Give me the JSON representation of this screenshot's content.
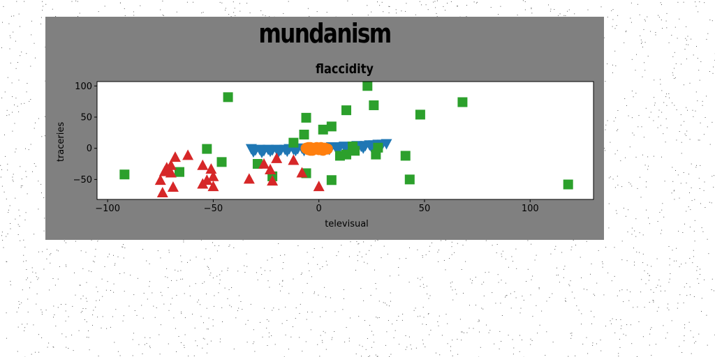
{
  "figure": {
    "background": "#808080"
  },
  "suptitle": "mundanism",
  "chart_data": {
    "type": "scatter",
    "title": "flaccidity",
    "xlabel": "televisual",
    "ylabel": "traceries",
    "xlim": [
      -105,
      130
    ],
    "ylim": [
      -82,
      107
    ],
    "xticks": [
      -100,
      -50,
      0,
      50,
      100
    ],
    "yticks": [
      -50,
      0,
      50,
      100
    ],
    "grid": false,
    "series": [
      {
        "marker": "triangle-down",
        "color": "#1f77b4",
        "points": [
          [
            -32,
            0
          ],
          [
            -30,
            -2
          ],
          [
            -28,
            -1
          ],
          [
            -26,
            -3
          ],
          [
            -24,
            -1
          ],
          [
            -22,
            -2
          ],
          [
            -20,
            -1
          ],
          [
            -18,
            -2
          ],
          [
            -16,
            -1
          ],
          [
            -14,
            0
          ],
          [
            -12,
            -1
          ],
          [
            -10,
            0
          ],
          [
            -8,
            1
          ],
          [
            -6,
            0
          ],
          [
            -4,
            1
          ],
          [
            -2,
            1
          ],
          [
            0,
            2
          ],
          [
            2,
            1
          ],
          [
            4,
            2
          ],
          [
            6,
            3
          ],
          [
            8,
            2
          ],
          [
            10,
            3
          ],
          [
            12,
            4
          ],
          [
            14,
            3
          ],
          [
            16,
            4
          ],
          [
            18,
            5
          ],
          [
            20,
            4
          ],
          [
            22,
            5
          ],
          [
            24,
            6
          ],
          [
            26,
            6
          ],
          [
            28,
            7
          ],
          [
            30,
            7
          ],
          [
            32,
            8
          ],
          [
            -31,
            -5
          ],
          [
            -27,
            -6
          ],
          [
            -23,
            -4
          ],
          [
            -19,
            -5
          ],
          [
            -15,
            -4
          ],
          [
            -11,
            -3
          ],
          [
            -7,
            -3
          ],
          [
            -3,
            -2
          ],
          [
            1,
            -2
          ],
          [
            5,
            -1
          ],
          [
            9,
            -1
          ],
          [
            13,
            0
          ],
          [
            17,
            0
          ],
          [
            21,
            1
          ],
          [
            25,
            2
          ],
          [
            29,
            3
          ]
        ]
      },
      {
        "marker": "circle",
        "color": "#ff7f0e",
        "points": [
          [
            -6,
            0
          ],
          [
            -5,
            -2
          ],
          [
            -4,
            1
          ],
          [
            -3,
            -3
          ],
          [
            -2,
            0
          ],
          [
            -1,
            -1
          ],
          [
            0,
            -2
          ],
          [
            1,
            1
          ],
          [
            2,
            -1
          ],
          [
            3,
            0
          ],
          [
            -4,
            -3
          ],
          [
            -1,
            1
          ],
          [
            2,
            -3
          ],
          [
            4,
            -1
          ],
          [
            -5,
            1
          ],
          [
            0,
            0
          ]
        ]
      },
      {
        "marker": "square",
        "color": "#2ca02c",
        "points": [
          [
            -92,
            -42
          ],
          [
            -43,
            82
          ],
          [
            23,
            100
          ],
          [
            68,
            74
          ],
          [
            26,
            69
          ],
          [
            13,
            61
          ],
          [
            -6,
            49
          ],
          [
            48,
            54
          ],
          [
            6,
            35
          ],
          [
            2,
            30
          ],
          [
            -7,
            22
          ],
          [
            -12,
            9
          ],
          [
            -53,
            -1
          ],
          [
            -46,
            -22
          ],
          [
            -66,
            -38
          ],
          [
            -29,
            -25
          ],
          [
            -22,
            -45
          ],
          [
            -6,
            -40
          ],
          [
            6,
            -51
          ],
          [
            10,
            -12
          ],
          [
            13,
            -10
          ],
          [
            17,
            -4
          ],
          [
            16,
            3
          ],
          [
            27,
            -10
          ],
          [
            28,
            1
          ],
          [
            41,
            -12
          ],
          [
            43,
            -50
          ],
          [
            118,
            -58
          ]
        ]
      },
      {
        "marker": "triangle",
        "color": "#d62728",
        "points": [
          [
            -74,
            -72
          ],
          [
            -75,
            -52
          ],
          [
            -73,
            -38
          ],
          [
            -72,
            -32
          ],
          [
            -70,
            -40
          ],
          [
            -70,
            -28
          ],
          [
            -68,
            -15
          ],
          [
            -69,
            -63
          ],
          [
            -62,
            -12
          ],
          [
            -55,
            -58
          ],
          [
            -55,
            -28
          ],
          [
            -53,
            -52
          ],
          [
            -51,
            -34
          ],
          [
            -50,
            -46
          ],
          [
            -50,
            -62
          ],
          [
            -33,
            -50
          ],
          [
            -26,
            -26
          ],
          [
            -23,
            -35
          ],
          [
            -22,
            -53
          ],
          [
            -20,
            -17
          ],
          [
            -12,
            -20
          ],
          [
            -8,
            -40
          ],
          [
            0,
            -62
          ]
        ]
      }
    ]
  }
}
